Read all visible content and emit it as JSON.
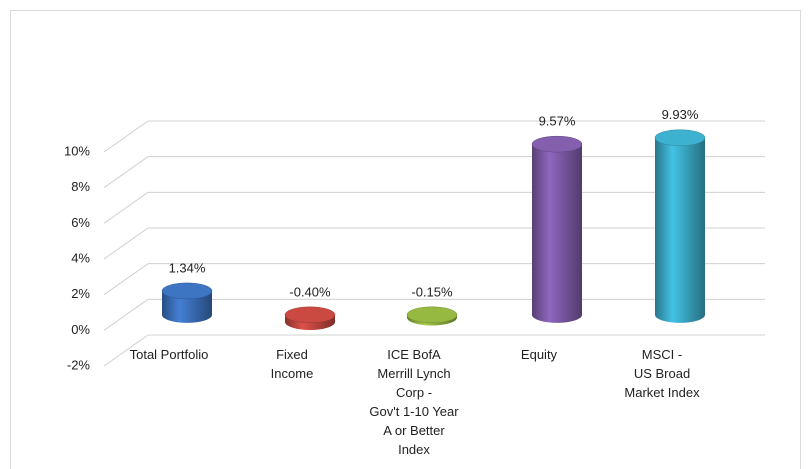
{
  "chart_data": {
    "type": "bar3d",
    "categories": [
      "Total Portfolio",
      "Fixed\nIncome",
      "ICE BofA\nMerrill Lynch\nCorp -\nGov't 1-10 Year\nA or Better\nIndex",
      "Equity",
      "MSCI -\nUS Broad\nMarket Index"
    ],
    "values": [
      1.34,
      -0.4,
      -0.15,
      9.57,
      9.93
    ],
    "value_labels": [
      "1.34%",
      "-0.40%",
      "-0.15%",
      "9.57%",
      "9.93%"
    ],
    "colors": [
      "#3b6fba",
      "#c0463f",
      "#8eb03e",
      "#7d5aa6",
      "#3aa9c6"
    ],
    "ylim": [
      -2,
      10
    ],
    "yticks": [
      {
        "value": -2,
        "label": "-2%"
      },
      {
        "value": 0,
        "label": "0%"
      },
      {
        "value": 2,
        "label": "2%"
      },
      {
        "value": 4,
        "label": "4%"
      },
      {
        "value": 6,
        "label": "6%"
      },
      {
        "value": 8,
        "label": "8%"
      },
      {
        "value": 10,
        "label": "10%"
      }
    ],
    "grid": true
  }
}
